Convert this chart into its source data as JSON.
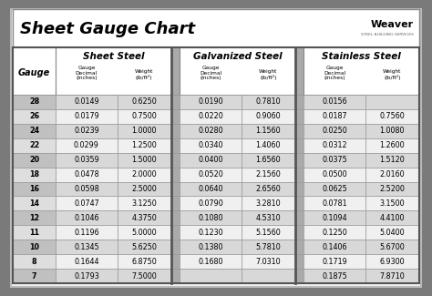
{
  "title": "Sheet Gauge Chart",
  "bg_outer": "#7a7a7a",
  "bg_inner": "#f2f2f2",
  "row_colors": [
    "#d8d8d8",
    "#f0f0f0"
  ],
  "gauge_col_colors": [
    "#c0c0c0",
    "#dedede"
  ],
  "divider_col_color": "#aaaaaa",
  "header_bg": "#ffffff",
  "border_dark": "#444444",
  "border_light": "#999999",
  "gauges": [
    28,
    26,
    24,
    22,
    20,
    18,
    16,
    14,
    12,
    11,
    10,
    8,
    7
  ],
  "sheet_steel_decimal": [
    "0.0149",
    "0.0179",
    "0.0239",
    "0.0299",
    "0.0359",
    "0.0478",
    "0.0598",
    "0.0747",
    "0.1046",
    "0.1196",
    "0.1345",
    "0.1644",
    "0.1793"
  ],
  "sheet_steel_weight": [
    "0.6250",
    "0.7500",
    "1.0000",
    "1.2500",
    "1.5000",
    "2.0000",
    "2.5000",
    "3.1250",
    "4.3750",
    "5.0000",
    "5.6250",
    "6.8750",
    "7.5000"
  ],
  "galv_decimal": [
    "0.0190",
    "0.0220",
    "0.0280",
    "0.0340",
    "0.0400",
    "0.0520",
    "0.0640",
    "0.0790",
    "0.1080",
    "0.1230",
    "0.1380",
    "0.1680",
    ""
  ],
  "galv_weight": [
    "0.7810",
    "0.9060",
    "1.1560",
    "1.4060",
    "1.6560",
    "2.1560",
    "2.6560",
    "3.2810",
    "4.5310",
    "5.1560",
    "5.7810",
    "7.0310",
    ""
  ],
  "stainless_decimal": [
    "0.0156",
    "0.0187",
    "0.0250",
    "0.0312",
    "0.0375",
    "0.0500",
    "0.0625",
    "0.0781",
    "0.1094",
    "0.1250",
    "0.1406",
    "0.1719",
    "0.1875"
  ],
  "stainless_weight": [
    "",
    "0.7560",
    "1.0080",
    "1.2600",
    "1.5120",
    "2.0160",
    "2.5200",
    "3.1500",
    "4.4100",
    "5.0400",
    "5.6700",
    "6.9300",
    "7.8710"
  ]
}
